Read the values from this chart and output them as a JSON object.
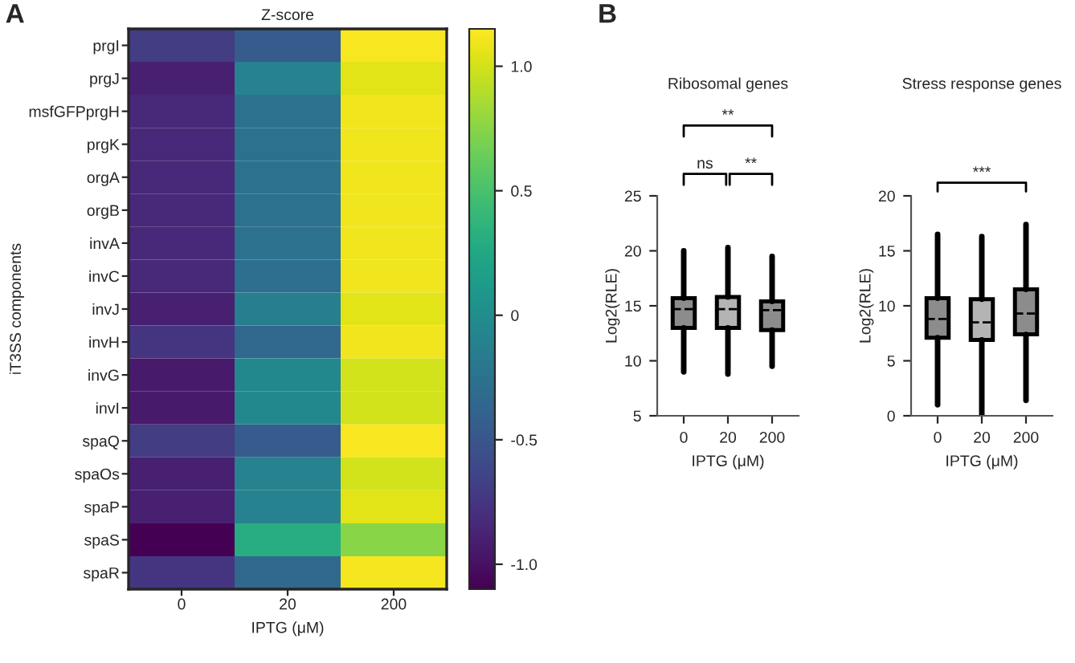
{
  "chart_data": [
    {
      "type": "heatmap",
      "title": "Z-score",
      "xlabel": "IPTG (μM)",
      "ylabel": "iT3SS components",
      "annotations": [
        "A"
      ],
      "categories": [
        "0",
        "20",
        "200"
      ],
      "y_categories": [
        "prgI",
        "prgJ",
        "msfGFPprgH",
        "prgK",
        "orgA",
        "orgB",
        "invA",
        "invC",
        "invJ",
        "invH",
        "invG",
        "invI",
        "spaQ",
        "spaOs",
        "spaP",
        "spaS",
        "spaR"
      ],
      "cells": [
        [
          -0.7,
          -0.45,
          1.13
        ],
        [
          -0.9,
          -0.1,
          1.05
        ],
        [
          -0.85,
          -0.25,
          1.1
        ],
        [
          -0.85,
          -0.25,
          1.1
        ],
        [
          -0.85,
          -0.25,
          1.1
        ],
        [
          -0.85,
          -0.25,
          1.1
        ],
        [
          -0.85,
          -0.25,
          1.1
        ],
        [
          -0.85,
          -0.3,
          1.1
        ],
        [
          -0.9,
          -0.15,
          1.05
        ],
        [
          -0.75,
          -0.35,
          1.1
        ],
        [
          -0.95,
          -0.05,
          1.0
        ],
        [
          -0.95,
          -0.05,
          1.0
        ],
        [
          -0.7,
          -0.45,
          1.13
        ],
        [
          -0.9,
          -0.1,
          1.0
        ],
        [
          -0.9,
          -0.1,
          1.05
        ],
        [
          -1.1,
          0.3,
          0.75
        ],
        [
          -0.75,
          -0.35,
          1.12
        ]
      ],
      "clim": [
        -1.1,
        1.15
      ],
      "cticks": [
        {
          "value": 1.0,
          "label": "1.0"
        },
        0.5,
        0,
        -0.5,
        {
          "value": -1.0,
          "label": "-1.0"
        }
      ]
    },
    {
      "type": "box",
      "title": "Ribosomal genes",
      "xlabel": "IPTG (μM)",
      "ylabel": "Log2(RLE)",
      "annotations": [
        "B",
        "**",
        "ns",
        "**"
      ],
      "categories": [
        "0",
        "20",
        "200"
      ],
      "colors": [
        "#8c8c8c",
        "#b4b4b4",
        "#8c8c8c"
      ],
      "boxes": [
        {
          "low": 9,
          "q1": 13,
          "median": 14.7,
          "q3": 15.7,
          "high": 20
        },
        {
          "low": 8.8,
          "q1": 13,
          "median": 14.7,
          "q3": 15.8,
          "high": 20.3
        },
        {
          "low": 9.5,
          "q1": 12.8,
          "median": 14.6,
          "q3": 15.4,
          "high": 19.5
        }
      ],
      "ylim": [
        5,
        25
      ],
      "yticks": [
        5,
        10,
        15,
        20,
        25
      ],
      "grid": false
    },
    {
      "type": "box",
      "title": "Stress response genes",
      "xlabel": "IPTG (μM)",
      "ylabel": "Log2(RLE)",
      "annotations": [
        "***"
      ],
      "categories": [
        "0",
        "20",
        "200"
      ],
      "colors": [
        "#8c8c8c",
        "#b4b4b4",
        "#8c8c8c"
      ],
      "boxes": [
        {
          "low": 1,
          "q1": 7.1,
          "median": 8.8,
          "q3": 10.7,
          "high": 16.5
        },
        {
          "low": 0,
          "q1": 6.9,
          "median": 8.5,
          "q3": 10.6,
          "high": 16.3
        },
        {
          "low": 1.4,
          "q1": 7.4,
          "median": 9.3,
          "q3": 11.5,
          "high": 17.4
        }
      ],
      "ylim": [
        0,
        20
      ],
      "yticks": [
        0,
        5,
        10,
        15,
        20
      ],
      "grid": false
    }
  ]
}
